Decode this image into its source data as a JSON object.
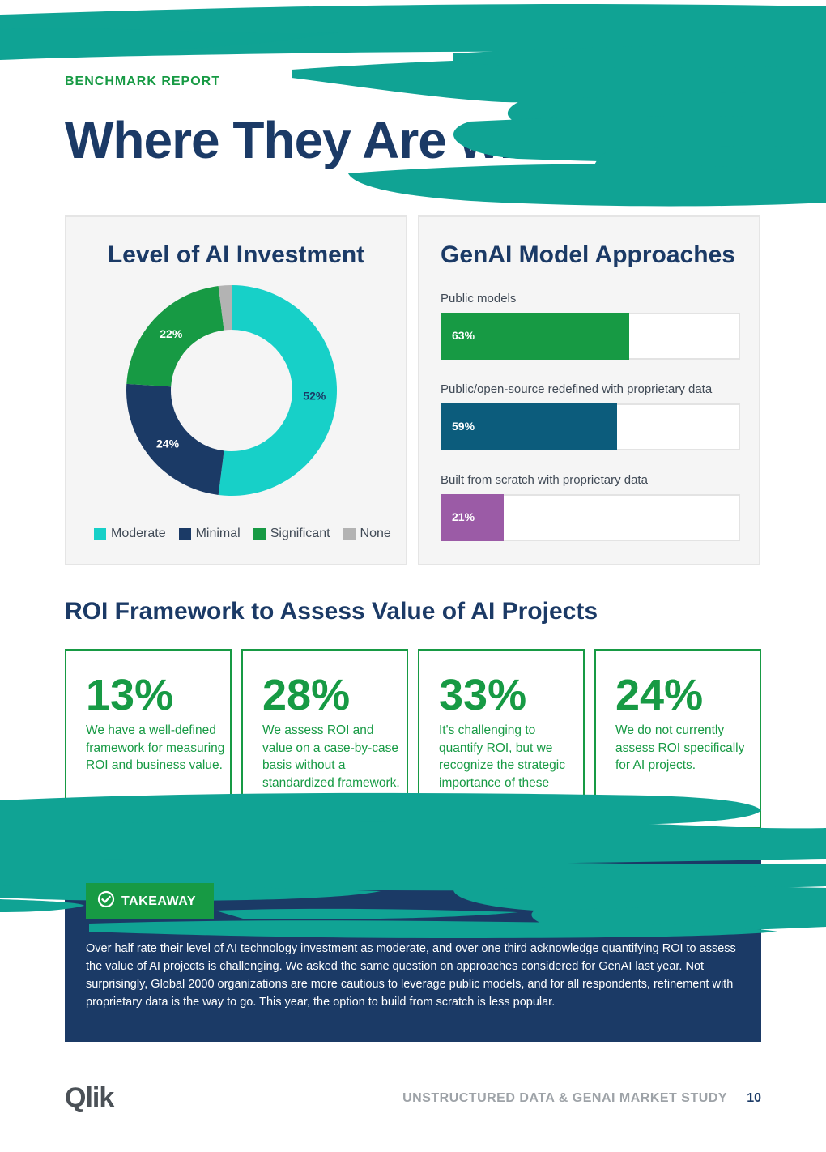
{
  "header": {
    "eyebrow": "BENCHMARK REPORT",
    "title": "Where They Are with GenAI"
  },
  "investment": {
    "title": "Level of AI Investment",
    "legend": [
      {
        "label": "Moderate",
        "color": "#17d0c8"
      },
      {
        "label": "Minimal",
        "color": "#1b3a66"
      },
      {
        "label": "Significant",
        "color": "#179a44"
      },
      {
        "label": "None",
        "color": "#b3b3b3"
      }
    ]
  },
  "approaches": {
    "title": "GenAI Model Approaches",
    "bars": [
      {
        "label": "Public models",
        "value_label": "63%",
        "color": "#179a44"
      },
      {
        "label": "Public/open-source redefined with proprietary data",
        "value_label": "59%",
        "color": "#0c5c7c"
      },
      {
        "label": "Built from scratch with proprietary data",
        "value_label": "21%",
        "color": "#9b5ba6"
      }
    ]
  },
  "chart_data": [
    {
      "type": "pie",
      "title": "Level of AI Investment",
      "categories": [
        "Moderate",
        "Minimal",
        "Significant",
        "None"
      ],
      "values": [
        52,
        24,
        22,
        2
      ],
      "labels": [
        "52%",
        "24%",
        "22%",
        ""
      ],
      "colors": [
        "#17d0c8",
        "#1b3a66",
        "#179a44",
        "#b3b3b3"
      ],
      "legend": "bottom"
    },
    {
      "type": "bar",
      "title": "GenAI Model Approaches",
      "categories": [
        "Public models",
        "Public/open-source redefined with proprietary data",
        "Built from scratch with proprietary data"
      ],
      "values": [
        63,
        59,
        21
      ],
      "ylim": [
        0,
        100
      ],
      "orientation": "horizontal"
    }
  ],
  "roi": {
    "title": "ROI Framework to Assess Value of AI Projects",
    "cards": [
      {
        "value": "13%",
        "text": "We have a well-defined framework for measuring ROI and business value."
      },
      {
        "value": "28%",
        "text": "We assess ROI and value on a case-by-case basis without a standardized framework."
      },
      {
        "value": "33%",
        "text": "It's challenging to quantify ROI, but we recognize the strategic importance of these projects."
      },
      {
        "value": "24%",
        "text": "We do not currently assess ROI specifically for AI projects."
      }
    ]
  },
  "takeaway": {
    "label": "TAKEAWAY",
    "text": "Over half rate their level of AI technology investment as moderate, and over one third acknowledge quantifying ROI to assess the value of AI projects is challenging. We asked the same question on approaches considered for GenAI last year. Not surprisingly, Global 2000 organizations are more cautious to leverage public models, and for all respondents, refinement with proprietary data is the way to go. This year, the option to build from scratch is less popular."
  },
  "footer": {
    "logo": "Qlik",
    "study": "UNSTRUCTURED DATA & GENAI MARKET STUDY",
    "page": "10"
  },
  "colors": {
    "teal_brush": "#10a394",
    "navy": "#1b3a66",
    "green": "#179a44"
  }
}
